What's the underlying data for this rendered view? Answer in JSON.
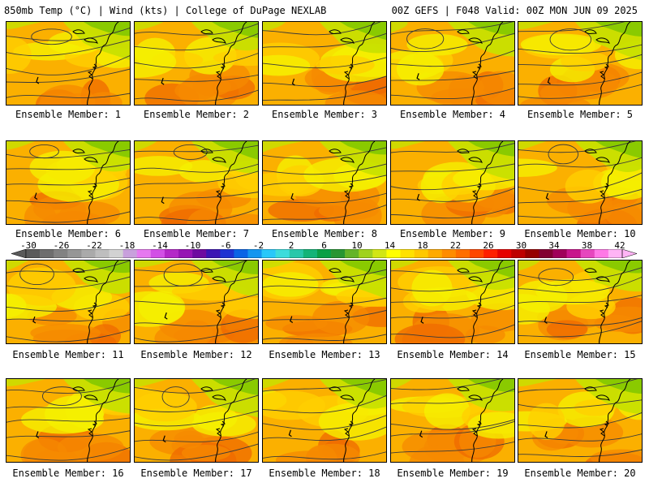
{
  "header": {
    "left": "850mb Temp (°C) | Wind (kts) | College of DuPage NEXLAB",
    "right": "00Z GEFS | F048 Valid: 00Z MON JUN 09 2025"
  },
  "caption_prefix": "Ensemble Member:",
  "members": [
    "1",
    "2",
    "3",
    "4",
    "5",
    "6",
    "7",
    "8",
    "9",
    "10",
    "11",
    "12",
    "13",
    "14",
    "15",
    "16",
    "17",
    "18",
    "19",
    "20"
  ],
  "colorbar": {
    "tick_labels": [
      "-30",
      "-26",
      "-22",
      "-18",
      "-14",
      "-10",
      "-6",
      "-2",
      "2",
      "6",
      "10",
      "14",
      "18",
      "22",
      "26",
      "30",
      "34",
      "38",
      "42"
    ],
    "colors": [
      "#5a5a5a",
      "#6e6e6e",
      "#828282",
      "#969696",
      "#aaaaaa",
      "#bebebe",
      "#d2d2d2",
      "#c8a0dc",
      "#e678f0",
      "#d250e6",
      "#b428c8",
      "#9614b4",
      "#6e0aa0",
      "#3c14b4",
      "#1e32d2",
      "#0a64e6",
      "#1496f0",
      "#28c8fa",
      "#3cdcdc",
      "#28c8aa",
      "#14b478",
      "#0aa046",
      "#289632",
      "#64b428",
      "#a0d21e",
      "#d2e614",
      "#ffff00",
      "#ffe100",
      "#ffc800",
      "#ffaa00",
      "#ff8c00",
      "#ff6e00",
      "#ff4600",
      "#ff1e00",
      "#e60000",
      "#be0000",
      "#960000",
      "#820032",
      "#a0005a",
      "#c8148c",
      "#e646be",
      "#ff78e6",
      "#ffb4f5"
    ]
  },
  "map_colors": {
    "base": "#fbb000",
    "warm": "#f58a00",
    "hot": "#ef6a00",
    "cool": "#ffd000",
    "yellow": "#f5f000",
    "lime": "#c8e000",
    "green": "#86c800",
    "contour": "#3a3a3a",
    "coast": "#000000"
  }
}
